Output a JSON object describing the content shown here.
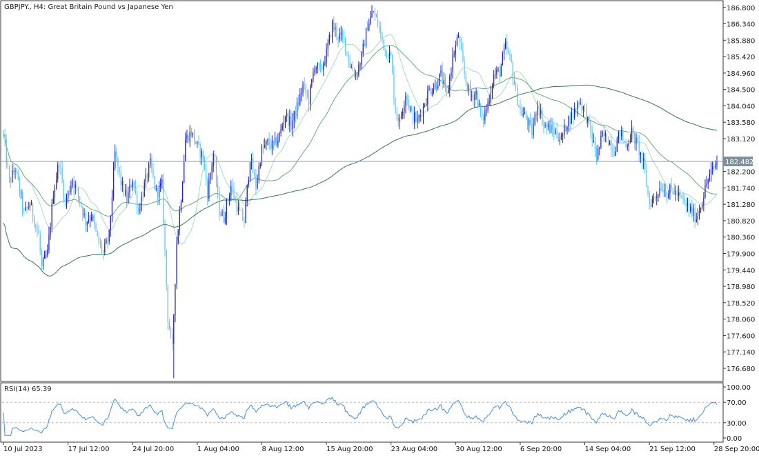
{
  "symbol": "GBPJPY.",
  "timeframe": "H4",
  "instrument_name": "Great Britain Pound vs Japanese Yen",
  "current_price": "182.482",
  "colors": {
    "background": "#ffffff",
    "bull_candle": "#1f1fcc",
    "bear_candle": "#5bc8f5",
    "ma_fast": "#a8dcb8",
    "ma_mid": "#5fae77",
    "ma_slow": "#2f7a4a",
    "rsi_line": "#3f8fe0",
    "price_line": "#8a9aa8",
    "price_tag": "#7f8f9c",
    "axis_text": "#1a1a1a",
    "frame": "#333333"
  },
  "chart_data": [
    {
      "type": "candlestick",
      "title": "GBPJPY., H4:  Great Britain Pound vs Japanese Yen",
      "y_ticks": [
        "186.800",
        "186.340",
        "185.880",
        "185.420",
        "184.960",
        "184.500",
        "184.040",
        "183.580",
        "183.120",
        "182.660",
        "182.200",
        "181.740",
        "181.280",
        "180.820",
        "180.360",
        "179.900",
        "179.440",
        "178.980",
        "178.520",
        "178.060",
        "177.600",
        "177.140",
        "176.680"
      ],
      "ylim": [
        176.35,
        186.95
      ],
      "x_ticks": [
        "10 Jul 2023",
        "17 Jul 12:00",
        "24 Jul 20:00",
        "1 Aug 04:00",
        "8 Aug 12:00",
        "15 Aug 20:00",
        "23 Aug 04:00",
        "30 Aug 12:00",
        "6 Sep 20:00",
        "14 Sep 04:00",
        "21 Sep 12:00",
        "28 Sep 20:00"
      ],
      "x_tick_bar_index": [
        0,
        44,
        88,
        132,
        176,
        220,
        264,
        308,
        352,
        396,
        440,
        484
      ],
      "bar_count": 487,
      "anchors": [
        [
          0,
          183.2
        ],
        [
          4,
          181.9
        ],
        [
          8,
          182.3
        ],
        [
          14,
          181.0
        ],
        [
          18,
          181.3
        ],
        [
          24,
          180.4
        ],
        [
          26,
          179.5
        ],
        [
          30,
          179.9
        ],
        [
          34,
          181.6
        ],
        [
          38,
          182.5
        ],
        [
          42,
          181.3
        ],
        [
          47,
          182.0
        ],
        [
          52,
          181.4
        ],
        [
          56,
          180.8
        ],
        [
          60,
          181.0
        ],
        [
          64,
          180.3
        ],
        [
          68,
          179.9
        ],
        [
          72,
          180.4
        ],
        [
          76,
          182.7
        ],
        [
          80,
          181.9
        ],
        [
          84,
          181.4
        ],
        [
          88,
          182.0
        ],
        [
          92,
          181.1
        ],
        [
          96,
          181.8
        ],
        [
          100,
          182.4
        ],
        [
          104,
          181.6
        ],
        [
          108,
          181.8
        ],
        [
          112,
          178.1
        ],
        [
          115,
          177.2
        ],
        [
          118,
          180.2
        ],
        [
          121,
          181.5
        ],
        [
          124,
          183.1
        ],
        [
          128,
          183.3
        ],
        [
          132,
          182.9
        ],
        [
          136,
          182.6
        ],
        [
          139,
          181.6
        ],
        [
          143,
          182.7
        ],
        [
          147,
          181.1
        ],
        [
          150,
          180.9
        ],
        [
          155,
          181.8
        ],
        [
          160,
          181.1
        ],
        [
          164,
          180.8
        ],
        [
          168,
          182.6
        ],
        [
          172,
          181.8
        ],
        [
          176,
          182.8
        ],
        [
          180,
          183.0
        ],
        [
          184,
          182.9
        ],
        [
          188,
          183.2
        ],
        [
          192,
          183.8
        ],
        [
          196,
          183.5
        ],
        [
          200,
          184.0
        ],
        [
          204,
          184.6
        ],
        [
          208,
          184.2
        ],
        [
          212,
          185.2
        ],
        [
          216,
          185.0
        ],
        [
          220,
          185.5
        ],
        [
          224,
          186.3
        ],
        [
          228,
          186.0
        ],
        [
          232,
          185.9
        ],
        [
          236,
          185.2
        ],
        [
          240,
          184.9
        ],
        [
          244,
          185.4
        ],
        [
          248,
          186.3
        ],
        [
          252,
          186.7
        ],
        [
          256,
          186.2
        ],
        [
          260,
          185.6
        ],
        [
          264,
          185.4
        ],
        [
          267,
          183.9
        ],
        [
          270,
          183.6
        ],
        [
          274,
          184.4
        ],
        [
          278,
          183.8
        ],
        [
          282,
          183.6
        ],
        [
          286,
          184.0
        ],
        [
          290,
          184.5
        ],
        [
          294,
          184.6
        ],
        [
          298,
          184.9
        ],
        [
          302,
          184.3
        ],
        [
          306,
          185.4
        ],
        [
          310,
          186.0
        ],
        [
          314,
          184.9
        ],
        [
          318,
          184.3
        ],
        [
          322,
          184.4
        ],
        [
          326,
          183.6
        ],
        [
          330,
          184.1
        ],
        [
          334,
          184.9
        ],
        [
          338,
          185.0
        ],
        [
          342,
          185.7
        ],
        [
          346,
          185.2
        ],
        [
          349,
          184.4
        ],
        [
          352,
          183.9
        ],
        [
          356,
          183.7
        ],
        [
          360,
          183.3
        ],
        [
          364,
          184.1
        ],
        [
          368,
          183.5
        ],
        [
          372,
          183.4
        ],
        [
          376,
          183.3
        ],
        [
          380,
          183.1
        ],
        [
          384,
          183.6
        ],
        [
          388,
          183.8
        ],
        [
          392,
          184.2
        ],
        [
          396,
          183.9
        ],
        [
          400,
          183.3
        ],
        [
          404,
          182.6
        ],
        [
          408,
          183.2
        ],
        [
          412,
          183.1
        ],
        [
          416,
          182.8
        ],
        [
          420,
          183.3
        ],
        [
          424,
          182.9
        ],
        [
          428,
          183.3
        ],
        [
          432,
          182.9
        ],
        [
          436,
          182.4
        ],
        [
          440,
          181.3
        ],
        [
          444,
          181.5
        ],
        [
          448,
          181.8
        ],
        [
          452,
          181.6
        ],
        [
          456,
          181.7
        ],
        [
          460,
          181.5
        ],
        [
          464,
          181.3
        ],
        [
          468,
          181.1
        ],
        [
          472,
          180.9
        ],
        [
          476,
          181.4
        ],
        [
          480,
          182.0
        ],
        [
          484,
          182.3
        ],
        [
          486,
          182.48
        ]
      ],
      "rsi": {
        "label": "RSI(14) 65.39",
        "period": 14,
        "last_value": 65.39,
        "levels": [
          70,
          30
        ],
        "y_ticks": [
          "100.00",
          "70.00",
          "30.00",
          "0.00"
        ],
        "ylim": [
          0,
          100
        ]
      }
    }
  ]
}
